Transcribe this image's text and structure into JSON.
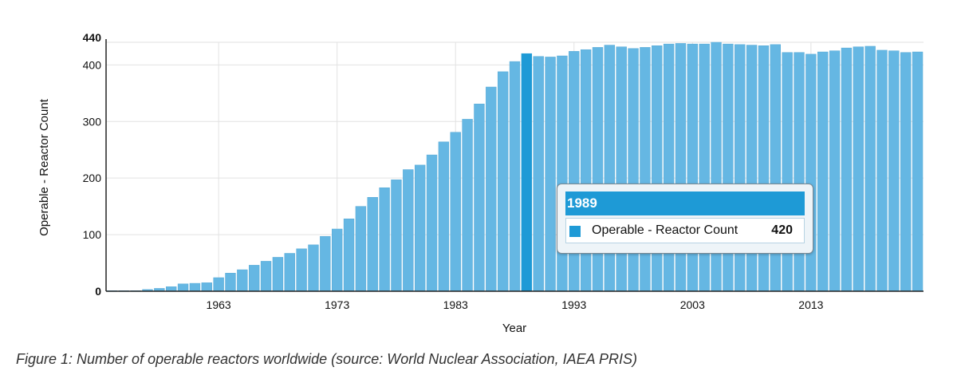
{
  "chart_data": {
    "type": "bar",
    "title": "",
    "xlabel": "Year",
    "ylabel": "Operable - Reactor Count",
    "ylim": [
      0,
      440
    ],
    "ytick_values": [
      0,
      100,
      200,
      300,
      400,
      440
    ],
    "ytick_labels": [
      "0",
      "100",
      "200",
      "300",
      "400",
      "440"
    ],
    "xtick_labels": [
      "1963",
      "1973",
      "1983",
      "1993",
      "2003",
      "2013"
    ],
    "series": [
      {
        "name": "Operable - Reactor Count",
        "x": [
          1954,
          1955,
          1956,
          1957,
          1958,
          1959,
          1960,
          1961,
          1962,
          1963,
          1964,
          1965,
          1966,
          1967,
          1968,
          1969,
          1970,
          1971,
          1972,
          1973,
          1974,
          1975,
          1976,
          1977,
          1978,
          1979,
          1980,
          1981,
          1982,
          1983,
          1984,
          1985,
          1986,
          1987,
          1988,
          1989,
          1990,
          1991,
          1992,
          1993,
          1994,
          1995,
          1996,
          1997,
          1998,
          1999,
          2000,
          2001,
          2002,
          2003,
          2004,
          2005,
          2006,
          2007,
          2008,
          2009,
          2010,
          2011,
          2012,
          2013,
          2014,
          2015,
          2016,
          2017,
          2018,
          2019,
          2020,
          2021,
          2022
        ],
        "values": [
          1,
          1,
          1,
          3,
          5,
          8,
          13,
          14,
          15,
          24,
          32,
          38,
          46,
          53,
          60,
          67,
          75,
          82,
          97,
          110,
          128,
          150,
          166,
          183,
          197,
          215,
          223,
          241,
          264,
          281,
          304,
          331,
          361,
          388,
          406,
          420,
          415,
          414,
          416,
          424,
          427,
          431,
          435,
          432,
          429,
          431,
          434,
          437,
          438,
          437,
          437,
          440,
          437,
          436,
          435,
          434,
          436,
          422,
          422,
          419,
          423,
          425,
          430,
          432,
          433,
          426,
          425,
          422,
          423
        ]
      }
    ],
    "highlight_index": 35,
    "colors": {
      "bar": "#65b7e3",
      "bar_edge": "#56a9d6",
      "bar_highlight": "#1e9ad6",
      "grid": "#e2e2e2"
    }
  },
  "tooltip": {
    "year": "1989",
    "series": "Operable - Reactor Count",
    "value": "420"
  },
  "caption": "Figure 1: Number of operable reactors worldwide (source: World Nuclear Association, IAEA PRIS)"
}
